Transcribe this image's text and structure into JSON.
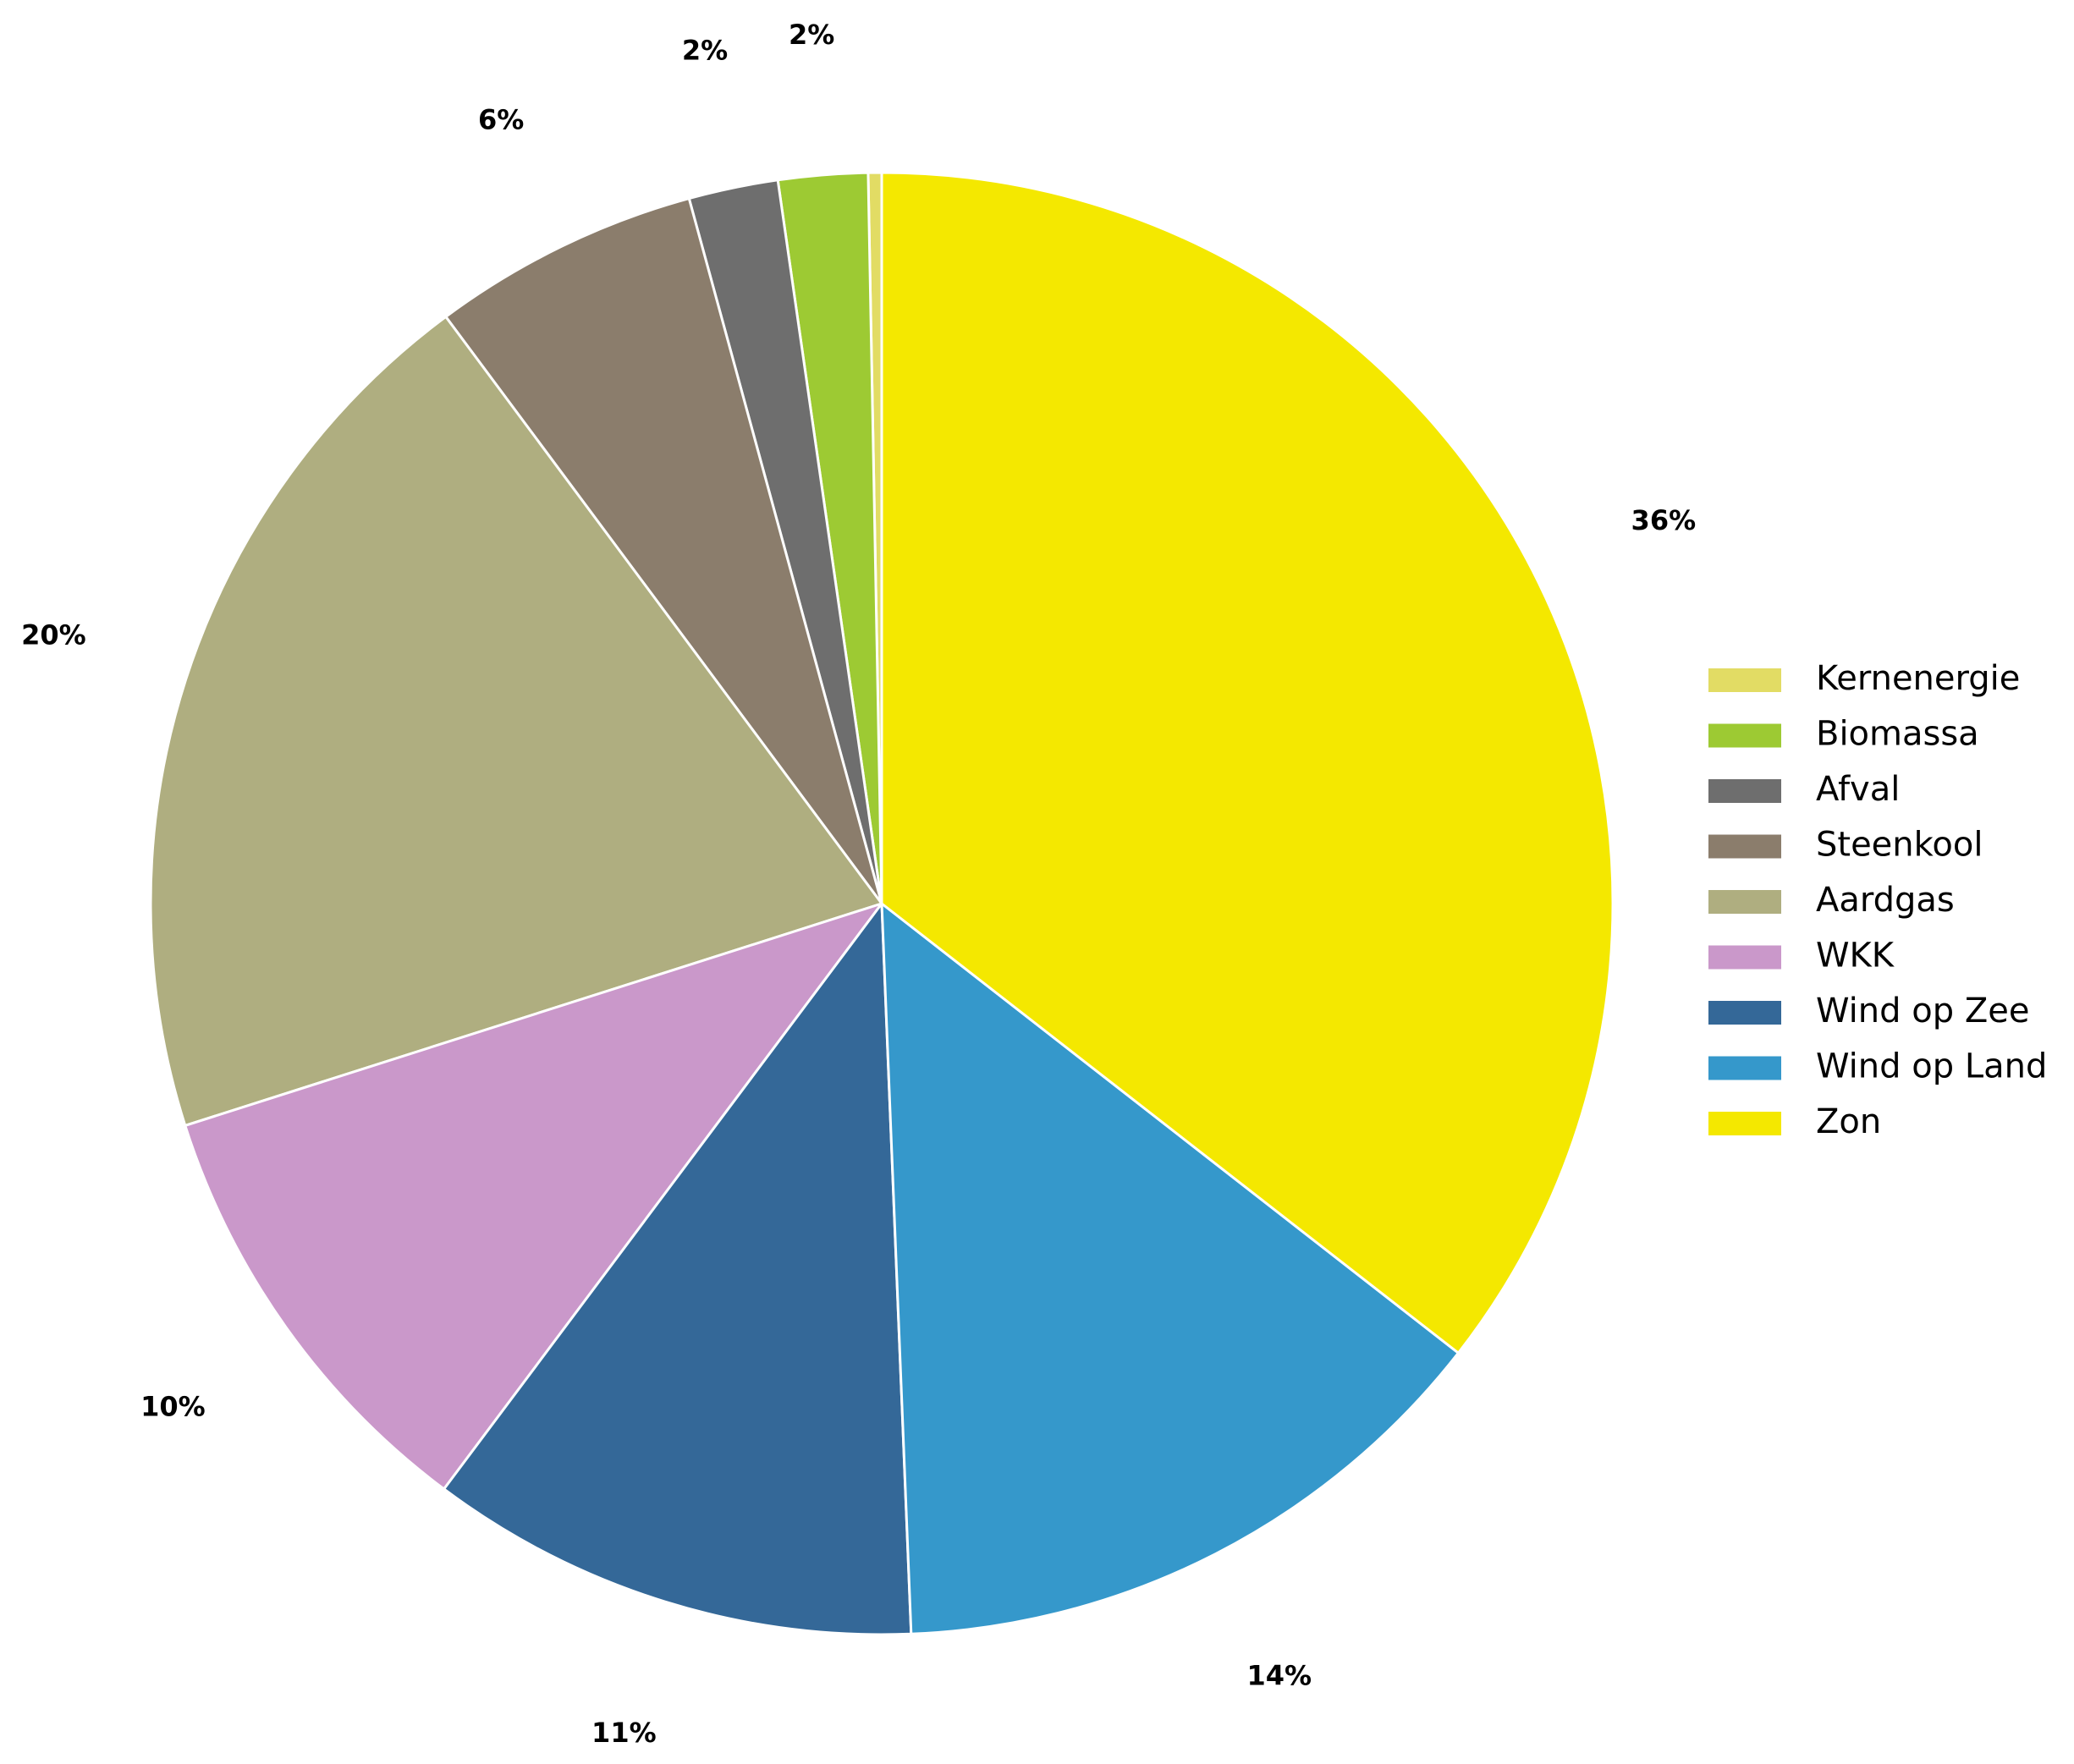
{
  "chart_data": {
    "type": "pie",
    "categories": [
      "Kernenergie",
      "Biomassa",
      "Afval",
      "Steenkool",
      "Aardgas",
      "WKK",
      "Wind op Zee",
      "Wind op Land",
      "Zon"
    ],
    "values": [
      0.3,
      2,
      2,
      6,
      20,
      10,
      11,
      14,
      36
    ],
    "value_labels": [
      null,
      "2%",
      "2%",
      "6%",
      "20%",
      "10%",
      "11%",
      "14%",
      "36%"
    ],
    "colors": [
      "#e2dc64",
      "#9dca33",
      "#6e6e6e",
      "#8b7d6c",
      "#afae80",
      "#ca98ca",
      "#346898",
      "#3598cb",
      "#f4e800"
    ],
    "legend": "right"
  }
}
